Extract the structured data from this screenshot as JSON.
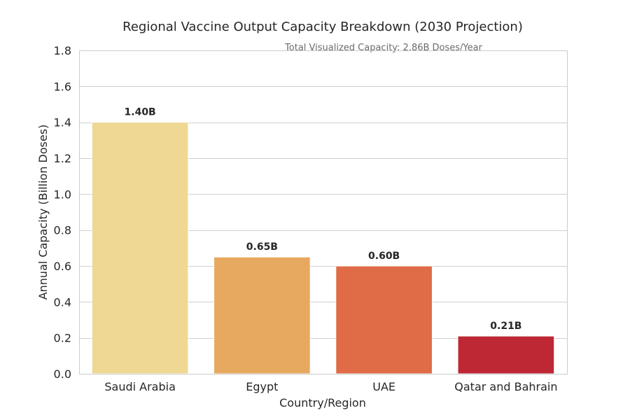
{
  "chart_data": {
    "type": "bar",
    "title": "Regional Vaccine Output Capacity Breakdown (2030 Projection)",
    "subtitle": "Total Visualized Capacity: 2.86B Doses/Year",
    "xlabel": "Country/Region",
    "ylabel": "Annual Capacity (Billion Doses)",
    "categories": [
      "Saudi Arabia",
      "Egypt",
      "UAE",
      "Qatar and Bahrain"
    ],
    "values": [
      1.4,
      0.65,
      0.6,
      0.21
    ],
    "data_labels": [
      "1.40B",
      "0.65B",
      "0.60B",
      "0.21B"
    ],
    "ylim": [
      0,
      1.8
    ],
    "yticks": [
      0.0,
      0.2,
      0.4,
      0.6,
      0.8,
      1.0,
      1.2,
      1.4,
      1.6,
      1.8
    ],
    "ytick_labels": [
      "0.0",
      "0.2",
      "0.4",
      "0.6",
      "0.8",
      "1.0",
      "1.2",
      "1.4",
      "1.6",
      "1.8"
    ],
    "colors": [
      "#eed894",
      "#e7a95f",
      "#e06c47",
      "#bd2834"
    ],
    "grid": true
  }
}
